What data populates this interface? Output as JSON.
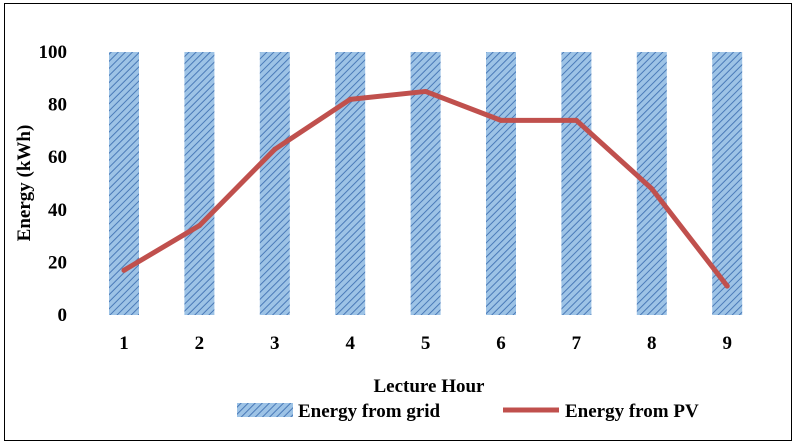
{
  "chart_data": {
    "type": "bar+line",
    "title": "",
    "xlabel": "Lecture Hour",
    "ylabel": "Energy (kWh)",
    "categories": [
      "1",
      "2",
      "3",
      "4",
      "5",
      "6",
      "7",
      "8",
      "9"
    ],
    "ylim": [
      0,
      100
    ],
    "yticks": [
      "0",
      "20",
      "40",
      "60",
      "80",
      "100"
    ],
    "grid": false,
    "legend_position": "bottom",
    "series": [
      {
        "name": "Energy from grid",
        "type": "bar",
        "pattern": "diagonal-hatch",
        "color": "#9dc3e6",
        "hatch_color": "#4a7ab8",
        "values": [
          100,
          100,
          100,
          100,
          100,
          100,
          100,
          100,
          100
        ]
      },
      {
        "name": "Energy from PV",
        "type": "line",
        "color": "#c0504d",
        "values": [
          17,
          34,
          63,
          82,
          85,
          74,
          74,
          48,
          11
        ]
      }
    ]
  }
}
